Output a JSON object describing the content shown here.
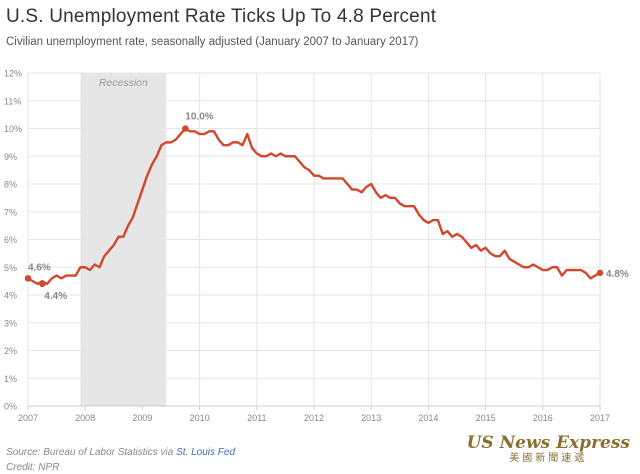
{
  "header": {
    "title": "U.S. Unemployment Rate Ticks Up To 4.8 Percent",
    "subtitle": "Civilian unemployment rate, seasonally adjusted (January 2007 to January 2017)"
  },
  "footer": {
    "source_prefix": "Source: Bureau of Labor Statistics via ",
    "source_link": "St. Louis Fed",
    "credit": "Credit: NPR"
  },
  "watermark": {
    "english": "US News Express",
    "chinese": "美國新聞速遞"
  },
  "colors": {
    "line": "#d2472b",
    "recession": "#e6e6e6",
    "grid": "#e5e5e5",
    "text": "#888888"
  },
  "chart_data": {
    "type": "line",
    "ylim": [
      0,
      12
    ],
    "xlim": [
      2007,
      2017
    ],
    "yticks": [
      "0%",
      "1%",
      "2%",
      "3%",
      "4%",
      "5%",
      "6%",
      "7%",
      "8%",
      "9%",
      "10%",
      "11%",
      "12%"
    ],
    "xticks": [
      "2007",
      "2008",
      "2009",
      "2010",
      "2011",
      "2012",
      "2013",
      "2014",
      "2015",
      "2016",
      "2017"
    ],
    "grid": true,
    "shaded_region": {
      "label": "Recession",
      "x_start": 2007.917,
      "x_end": 2009.417
    },
    "annotations": [
      {
        "text": "4.6%",
        "x": 2007.0,
        "y": 4.6
      },
      {
        "text": "4.4%",
        "x": 2007.25,
        "y": 4.4
      },
      {
        "text": "10.0%",
        "x": 2009.75,
        "y": 10.0
      },
      {
        "text": "4.8%",
        "x": 2017.0,
        "y": 4.8
      }
    ],
    "series": [
      {
        "start": "2007-01",
        "frequency": "monthly",
        "values": [
          4.6,
          4.5,
          4.4,
          4.5,
          4.4,
          4.6,
          4.7,
          4.6,
          4.7,
          4.7,
          4.7,
          5.0,
          5.0,
          4.9,
          5.1,
          5.0,
          5.4,
          5.6,
          5.8,
          6.1,
          6.1,
          6.5,
          6.8,
          7.3,
          7.8,
          8.3,
          8.7,
          9.0,
          9.4,
          9.5,
          9.5,
          9.6,
          9.8,
          10.0,
          9.9,
          9.9,
          9.8,
          9.8,
          9.9,
          9.9,
          9.6,
          9.4,
          9.4,
          9.5,
          9.5,
          9.4,
          9.8,
          9.3,
          9.1,
          9.0,
          9.0,
          9.1,
          9.0,
          9.1,
          9.0,
          9.0,
          9.0,
          8.8,
          8.6,
          8.5,
          8.3,
          8.3,
          8.2,
          8.2,
          8.2,
          8.2,
          8.2,
          8.0,
          7.8,
          7.8,
          7.7,
          7.9,
          8.0,
          7.7,
          7.5,
          7.6,
          7.5,
          7.5,
          7.3,
          7.2,
          7.2,
          7.2,
          6.9,
          6.7,
          6.6,
          6.7,
          6.7,
          6.2,
          6.3,
          6.1,
          6.2,
          6.1,
          5.9,
          5.7,
          5.8,
          5.6,
          5.7,
          5.5,
          5.4,
          5.4,
          5.6,
          5.3,
          5.2,
          5.1,
          5.0,
          5.0,
          5.1,
          5.0,
          4.9,
          4.9,
          5.0,
          5.0,
          4.7,
          4.9,
          4.9,
          4.9,
          4.9,
          4.8,
          4.6,
          4.7,
          4.8
        ]
      }
    ]
  }
}
